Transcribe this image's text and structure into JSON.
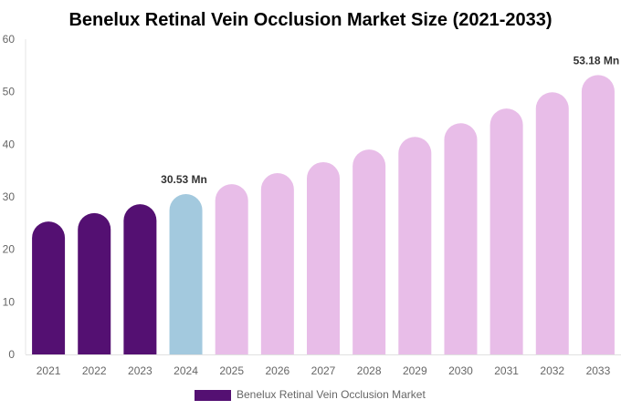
{
  "chart_data": {
    "type": "bar",
    "title": "Benelux Retinal Vein Occlusion Market Size (2021-2033)",
    "xlabel": "",
    "ylabel": "",
    "ylim": [
      0,
      60
    ],
    "yticks": [
      0,
      10,
      20,
      30,
      40,
      50,
      60
    ],
    "grid": false,
    "legend_placement": "bottom",
    "categories": [
      "2021",
      "2022",
      "2023",
      "2024",
      "2025",
      "2026",
      "2027",
      "2028",
      "2029",
      "2030",
      "2031",
      "2032",
      "2033"
    ],
    "series": [
      {
        "name": "Benelux Retinal Vein Occlusion Market",
        "values": [
          25.3,
          26.9,
          28.6,
          30.53,
          32.4,
          34.5,
          36.6,
          39.0,
          41.4,
          44.0,
          46.8,
          49.9,
          53.18
        ]
      }
    ],
    "bar_colors": [
      "#541072",
      "#541072",
      "#541072",
      "#a3c9de",
      "#e8bde8",
      "#e8bde8",
      "#e8bde8",
      "#e8bde8",
      "#e8bde8",
      "#e8bde8",
      "#e8bde8",
      "#e8bde8",
      "#e8bde8"
    ],
    "legend_color": "#541072",
    "data_labels": [
      {
        "category": "2024",
        "text": "30.53 Mn"
      },
      {
        "category": "2033",
        "text": "53.18 Mn"
      }
    ]
  }
}
